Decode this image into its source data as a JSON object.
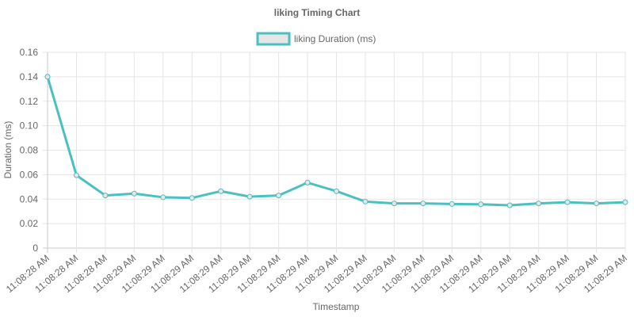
{
  "chart_data": {
    "type": "line",
    "title": "liking Timing Chart",
    "xlabel": "Timestamp",
    "ylabel": "Duration (ms)",
    "ylim": [
      0,
      0.16
    ],
    "yticks": [
      "0",
      "0.02",
      "0.04",
      "0.06",
      "0.08",
      "0.10",
      "0.12",
      "0.14",
      "0.16"
    ],
    "grid": true,
    "legend_position": "top-center",
    "categories": [
      "11:08:28 AM",
      "11:08:28 AM",
      "11:08:28 AM",
      "11:08:29 AM",
      "11:08:29 AM",
      "11:08:29 AM",
      "11:08:29 AM",
      "11:08:29 AM",
      "11:08:29 AM",
      "11:08:29 AM",
      "11:08:29 AM",
      "11:08:29 AM",
      "11:08:29 AM",
      "11:08:29 AM",
      "11:08:29 AM",
      "11:08:29 AM",
      "11:08:29 AM",
      "11:08:29 AM",
      "11:08:29 AM",
      "11:08:29 AM",
      "11:08:29 AM"
    ],
    "series": [
      {
        "name": "liking Duration (ms)",
        "color": "#4bc0c0",
        "fill_color": "#e6e6e6",
        "values": [
          0.14,
          0.0595,
          0.043,
          0.0445,
          0.0415,
          0.041,
          0.0465,
          0.042,
          0.043,
          0.0535,
          0.0465,
          0.038,
          0.0365,
          0.0365,
          0.036,
          0.0358,
          0.035,
          0.0365,
          0.0375,
          0.0365,
          0.0375
        ]
      }
    ]
  }
}
